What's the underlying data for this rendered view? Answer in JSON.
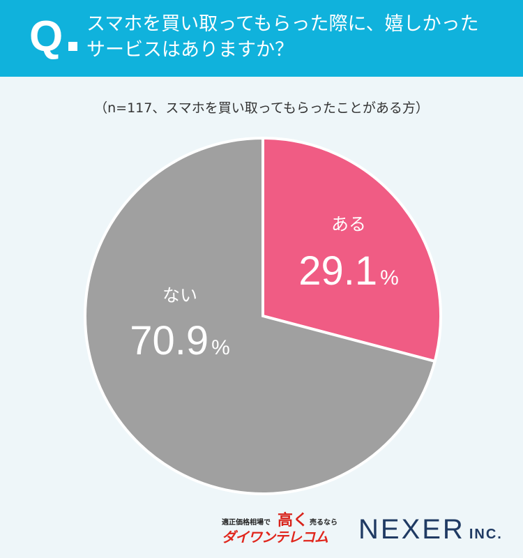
{
  "header": {
    "q_mark": "Q",
    "question_line1": "スマホを買い取ってもらった際に、嬉しかった",
    "question_line2": "サービスはありますか？"
  },
  "subtitle": "（n=117、スマホを買い取ってもらったことがある方）",
  "colors": {
    "header_bg": "#10b2dc",
    "page_bg": "#eef6f9",
    "yes": "#f05c84",
    "no": "#a0a0a0"
  },
  "chart_data": {
    "type": "pie",
    "title": "",
    "slices": [
      {
        "label": "ある",
        "value": 29.1,
        "display": "29.1",
        "color": "#f05c84"
      },
      {
        "label": "ない",
        "value": 70.9,
        "display": "70.9",
        "color": "#a0a0a0"
      }
    ],
    "unit": "%",
    "start": "12 o'clock",
    "direction": "clockwise"
  },
  "footer": {
    "logo_tagline_left": "適正価格相場で",
    "logo_tagline_big": "高く",
    "logo_tagline_right": "売るなら",
    "logo_name": "ダイワンテレコム",
    "company": "NEXER",
    "company_suffix": "INC."
  }
}
